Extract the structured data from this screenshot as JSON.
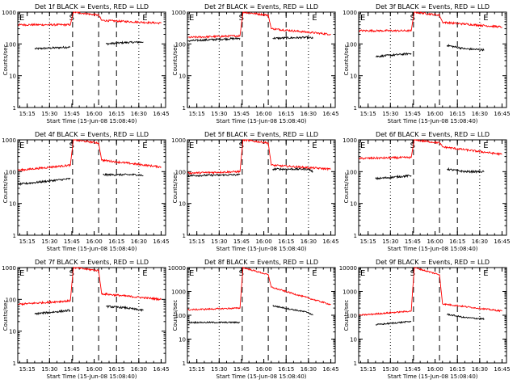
{
  "figure": {
    "xlabel": "Start Time (15-Jun-08 15:08:40)",
    "ylabel": "Counts/sec",
    "x_tick_labels": [
      "15:15",
      "15:30",
      "15:45",
      "16:00",
      "16:15",
      "16:30",
      "16:45"
    ],
    "y_tick_labels_small": [
      "1",
      "10",
      "100",
      "1000"
    ],
    "y_tick_labels_large": [
      "1",
      "10",
      "100",
      "1000",
      "10000"
    ],
    "start_marker": "S",
    "end_marker": "E",
    "colors": {
      "events": "#000000",
      "lld": "#ff0000"
    }
  },
  "chart_data": [
    {
      "type": "line",
      "title": "Det 1f BLACK = Events, RED = LLD",
      "ylim": [
        1,
        1000
      ],
      "y_scale": "log",
      "x_time_range": [
        "15:08:40",
        "16:48:00"
      ],
      "series": [
        {
          "name": "Events",
          "color": "#000000",
          "points": [
            [
              "15:20",
              70
            ],
            [
              "15:44",
              80
            ],
            [
              "16:08",
              100
            ],
            [
              "16:20",
              110
            ],
            [
              "16:33",
              115
            ]
          ]
        },
        {
          "name": "LLD",
          "color": "#ff0000",
          "points": [
            [
              "15:09",
              400
            ],
            [
              "15:44",
              400
            ],
            [
              "15:46",
              1000
            ],
            [
              "16:03",
              800
            ],
            [
              "16:05",
              550
            ],
            [
              "16:45",
              450
            ]
          ]
        }
      ]
    },
    {
      "type": "line",
      "title": "Det 2f BLACK = Events, RED = LLD",
      "ylim": [
        1,
        1000
      ],
      "y_scale": "log",
      "x_time_range": [
        "15:08:40",
        "16:48:00"
      ],
      "series": [
        {
          "name": "Events",
          "color": "#000000",
          "points": [
            [
              "15:09",
              125
            ],
            [
              "15:44",
              150
            ],
            [
              "16:06",
              150
            ],
            [
              "16:30",
              160
            ],
            [
              "16:33",
              150
            ]
          ]
        },
        {
          "name": "LLD",
          "color": "#ff0000",
          "points": [
            [
              "15:09",
              160
            ],
            [
              "15:44",
              180
            ],
            [
              "15:46",
              1000
            ],
            [
              "16:03",
              800
            ],
            [
              "16:05",
              300
            ],
            [
              "16:45",
              200
            ]
          ]
        }
      ]
    },
    {
      "type": "line",
      "title": "Det 3f BLACK = Events, RED = LLD",
      "ylim": [
        1,
        1000
      ],
      "y_scale": "log",
      "x_time_range": [
        "15:08:40",
        "16:48:00"
      ],
      "series": [
        {
          "name": "Events",
          "color": "#000000",
          "points": [
            [
              "15:20",
              40
            ],
            [
              "15:44",
              50
            ],
            [
              "16:08",
              90
            ],
            [
              "16:20",
              70
            ],
            [
              "16:33",
              65
            ]
          ]
        },
        {
          "name": "LLD",
          "color": "#ff0000",
          "points": [
            [
              "15:09",
              260
            ],
            [
              "15:44",
              260
            ],
            [
              "15:46",
              1000
            ],
            [
              "16:03",
              800
            ],
            [
              "16:05",
              480
            ],
            [
              "16:45",
              340
            ]
          ]
        }
      ]
    },
    {
      "type": "line",
      "title": "Det 4f BLACK = Events, RED = LLD",
      "ylim": [
        1,
        1000
      ],
      "y_scale": "log",
      "x_time_range": [
        "15:08:40",
        "16:48:00"
      ],
      "series": [
        {
          "name": "Events",
          "color": "#000000",
          "points": [
            [
              "15:09",
              40
            ],
            [
              "15:44",
              60
            ],
            [
              "16:06",
              80
            ],
            [
              "16:30",
              80
            ],
            [
              "16:33",
              75
            ]
          ]
        },
        {
          "name": "LLD",
          "color": "#ff0000",
          "points": [
            [
              "15:09",
              110
            ],
            [
              "15:44",
              160
            ],
            [
              "15:46",
              1000
            ],
            [
              "16:03",
              800
            ],
            [
              "16:05",
              230
            ],
            [
              "16:45",
              140
            ]
          ]
        }
      ]
    },
    {
      "type": "line",
      "title": "Det 5f BLACK = Events, RED = LLD",
      "ylim": [
        1,
        1000
      ],
      "y_scale": "log",
      "x_time_range": [
        "15:08:40",
        "16:48:00"
      ],
      "series": [
        {
          "name": "Events",
          "color": "#000000",
          "points": [
            [
              "15:09",
              75
            ],
            [
              "15:44",
              80
            ],
            [
              "16:06",
              120
            ],
            [
              "16:30",
              120
            ],
            [
              "16:33",
              100
            ]
          ]
        },
        {
          "name": "LLD",
          "color": "#ff0000",
          "points": [
            [
              "15:09",
              90
            ],
            [
              "15:44",
              100
            ],
            [
              "15:46",
              1000
            ],
            [
              "16:03",
              800
            ],
            [
              "16:05",
              160
            ],
            [
              "16:45",
              120
            ]
          ]
        }
      ]
    },
    {
      "type": "line",
      "title": "Det 6f BLACK = Events, RED = LLD",
      "ylim": [
        1,
        1000
      ],
      "y_scale": "log",
      "x_time_range": [
        "15:08:40",
        "16:48:00"
      ],
      "series": [
        {
          "name": "Events",
          "color": "#000000",
          "points": [
            [
              "15:20",
              60
            ],
            [
              "15:44",
              75
            ],
            [
              "16:08",
              120
            ],
            [
              "16:20",
              100
            ],
            [
              "16:33",
              100
            ]
          ]
        },
        {
          "name": "LLD",
          "color": "#ff0000",
          "points": [
            [
              "15:09",
              260
            ],
            [
              "15:44",
              280
            ],
            [
              "15:46",
              1000
            ],
            [
              "16:03",
              800
            ],
            [
              "16:05",
              600
            ],
            [
              "16:45",
              350
            ]
          ]
        }
      ]
    },
    {
      "type": "line",
      "title": "Det 7f BLACK = Events, RED = LLD",
      "ylim": [
        1,
        1000
      ],
      "y_scale": "log",
      "x_time_range": [
        "15:08:40",
        "16:48:00"
      ],
      "series": [
        {
          "name": "Events",
          "color": "#000000",
          "points": [
            [
              "15:20",
              35
            ],
            [
              "15:44",
              45
            ],
            [
              "16:08",
              60
            ],
            [
              "16:20",
              55
            ],
            [
              "16:33",
              45
            ]
          ]
        },
        {
          "name": "LLD",
          "color": "#ff0000",
          "points": [
            [
              "15:09",
              70
            ],
            [
              "15:44",
              90
            ],
            [
              "15:46",
              1000
            ],
            [
              "16:03",
              800
            ],
            [
              "16:05",
              150
            ],
            [
              "16:45",
              100
            ]
          ]
        }
      ]
    },
    {
      "type": "line",
      "title": "Det 8f BLACK = Events, RED = LLD",
      "ylim": [
        1,
        10000
      ],
      "y_scale": "log",
      "x_time_range": [
        "15:08:40",
        "16:48:00"
      ],
      "series": [
        {
          "name": "Events",
          "color": "#000000",
          "points": [
            [
              "15:09",
              50
            ],
            [
              "15:44",
              50
            ],
            [
              "16:06",
              250
            ],
            [
              "16:30",
              130
            ],
            [
              "16:33",
              100
            ]
          ]
        },
        {
          "name": "LLD",
          "color": "#ff0000",
          "points": [
            [
              "15:09",
              170
            ],
            [
              "15:44",
              200
            ],
            [
              "15:46",
              10000
            ],
            [
              "16:03",
              5000
            ],
            [
              "16:05",
              1500
            ],
            [
              "16:45",
              280
            ]
          ]
        }
      ]
    },
    {
      "type": "line",
      "title": "Det 9f BLACK = Events, RED = LLD",
      "ylim": [
        1,
        10000
      ],
      "y_scale": "log",
      "x_time_range": [
        "15:08:40",
        "16:48:00"
      ],
      "series": [
        {
          "name": "Events",
          "color": "#000000",
          "points": [
            [
              "15:20",
              40
            ],
            [
              "15:44",
              55
            ],
            [
              "16:08",
              110
            ],
            [
              "16:20",
              80
            ],
            [
              "16:33",
              70
            ]
          ]
        },
        {
          "name": "LLD",
          "color": "#ff0000",
          "points": [
            [
              "15:09",
              100
            ],
            [
              "15:44",
              150
            ],
            [
              "15:46",
              10000
            ],
            [
              "16:03",
              5000
            ],
            [
              "16:05",
              300
            ],
            [
              "16:45",
              150
            ]
          ]
        }
      ]
    }
  ]
}
